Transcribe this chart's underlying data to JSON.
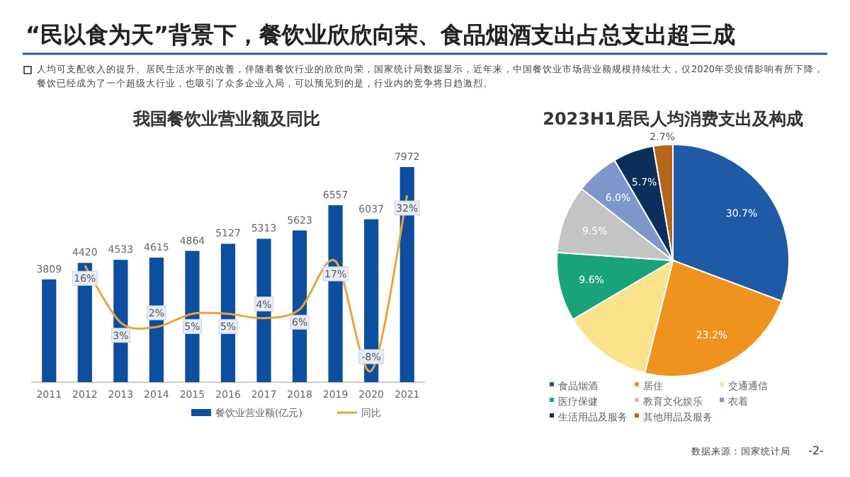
{
  "chart_data": [
    {
      "type": "bar",
      "title": "我国餐饮业营业额及同比",
      "categories": [
        "2011",
        "2012",
        "2013",
        "2014",
        "2015",
        "2016",
        "2017",
        "2018",
        "2019",
        "2020",
        "2021"
      ],
      "series": [
        {
          "name": "餐饮业营业额(亿元)",
          "color": "#0d4ea0",
          "values": [
            3809,
            4420,
            4533,
            4615,
            4864,
            5127,
            5313,
            5623,
            6557,
            6037,
            7972
          ],
          "value_labels": [
            "3809",
            "4420",
            "4533",
            "4615",
            "4864",
            "5127",
            "5313",
            "5623",
            "6557",
            "6037",
            "7972"
          ]
        },
        {
          "name": "同比",
          "type": "line",
          "axis": "y2",
          "color": "#e8a53c",
          "values": [
            null,
            16,
            3,
            2,
            5,
            5,
            4,
            6,
            17,
            -8,
            32
          ],
          "value_labels": [
            null,
            "16%",
            "3%",
            "2%",
            "5%",
            "5%",
            "4%",
            "6%",
            "17%",
            "-8%",
            "32%"
          ]
        }
      ],
      "legend": "bottom",
      "annotations": [
        "“民以食为天”背景下，餐饮业欣欣向荣、食品烟酒支出占总支出超三成",
        "人均可支配收入的提升、居民生活水平的改善，伴随着餐饮行业的欣欣向荣，国家统计局数据显示，近年来，中国餐饮业市场营业额规模持续壮大，仅2020年受疫情影响有所下降，餐饮已经成为了一个超级大行业，也吸引了众多企业入局，可以预见到的是，行业内的竞争将日趋激烈。"
      ]
    },
    {
      "type": "pie",
      "title": "2023H1居民人均消费支出及构成",
      "categories": [
        "食品烟酒",
        "居住",
        "交通通信",
        "医疗保健",
        "教育文化娱乐",
        "衣着",
        "生活用品及服务",
        "其他用品及服务"
      ],
      "values": [
        30.7,
        23.2,
        12.6,
        9.6,
        9.5,
        6.0,
        5.7,
        2.7
      ],
      "colors": [
        "#1f5aa6",
        "#f0921e",
        "#fbe38c",
        "#1aa37a",
        "#c4c4c4",
        "#7f96cc",
        "#0b2f5a",
        "#b5661b"
      ],
      "value_labels": [
        "30.7%",
        "23.2%",
        null,
        "9.6%",
        "9.5%",
        "6.0%",
        "5.7%",
        "2.7%"
      ],
      "legend": "bottom",
      "annotations": [
        "数据来源：国家统计局",
        "-2-"
      ]
    }
  ]
}
